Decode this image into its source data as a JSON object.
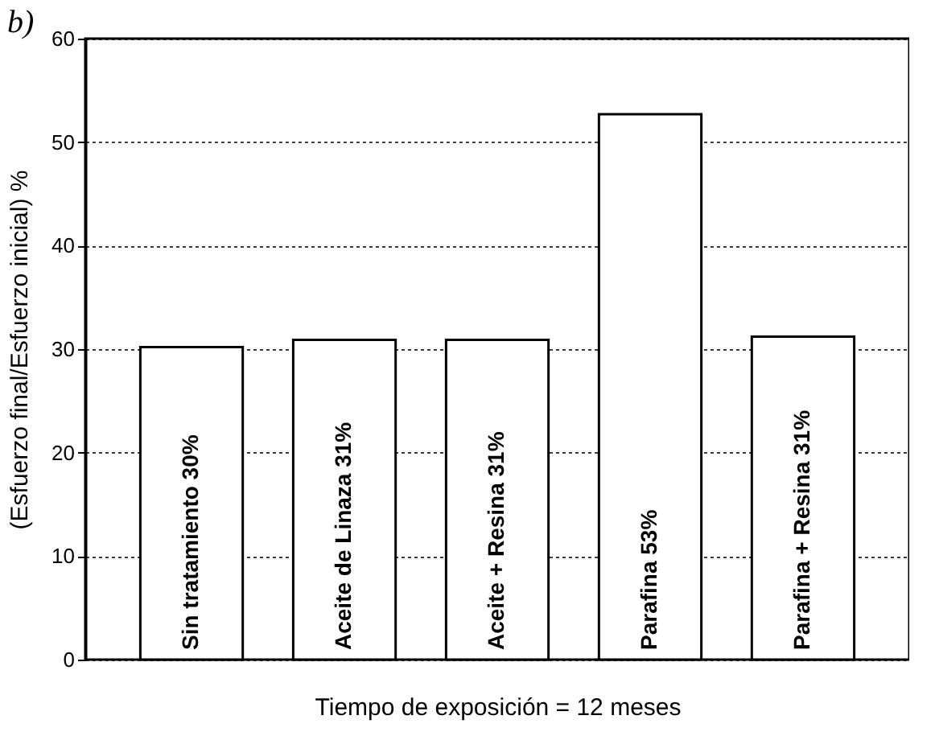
{
  "chart_data": {
    "type": "bar",
    "title": "b)",
    "xlabel": "Tiempo de exposición = 12 meses",
    "ylabel": "(Esfuerzo final/Esfuerzo inicial) %",
    "categories": [
      "Sin tratamiento 30%",
      "Aceite de Linaza 31%",
      "Aceite + Resina 31%",
      "Parafina 53%",
      "Parafina + Resina 31%"
    ],
    "values": [
      30.2,
      30.9,
      30.9,
      52.7,
      31.2
    ],
    "color": "#ffffff",
    "ylim": [
      0,
      60
    ],
    "yticks": [
      0,
      10,
      20,
      30,
      40,
      50,
      60
    ],
    "grid": "y"
  }
}
